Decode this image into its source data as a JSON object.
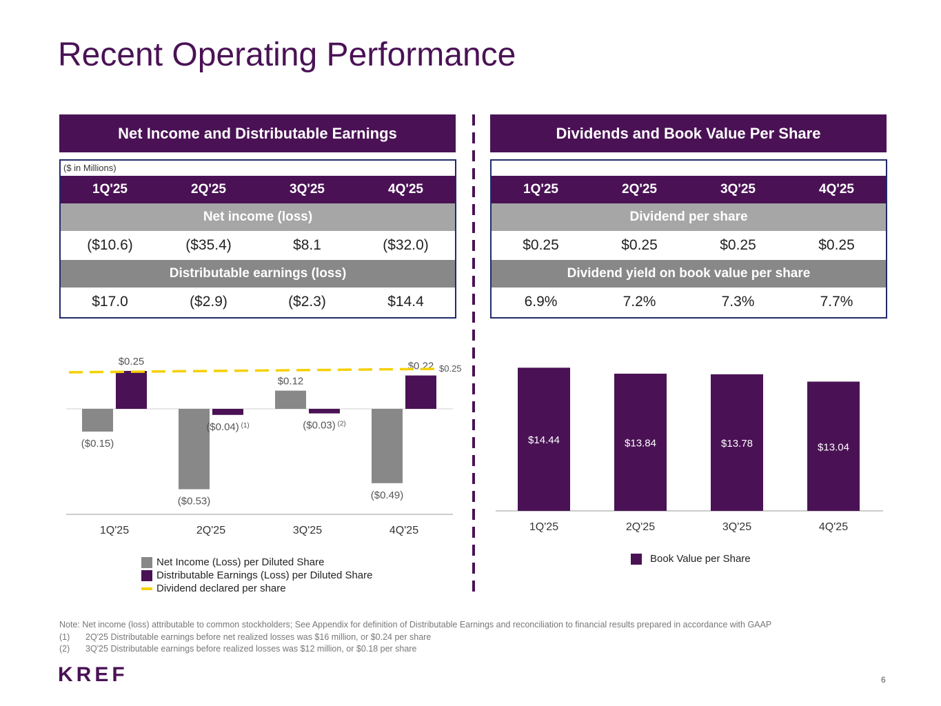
{
  "title": "Recent Operating Performance",
  "left_panel": {
    "heading": "Net Income and Distributable Earnings",
    "unit_note": "($ in Millions)",
    "quarters": [
      "1Q'25",
      "2Q'25",
      "3Q'25",
      "4Q'25"
    ],
    "net_income_label": "Net income (loss)",
    "net_income": [
      "($10.6)",
      "($35.4)",
      "$8.1",
      "($32.0)"
    ],
    "distributable_label": "Distributable earnings (loss)",
    "distributable": [
      "$17.0",
      "($2.9)",
      "($2.3)",
      "$14.4"
    ]
  },
  "right_panel": {
    "heading": "Dividends and Book Value Per Share",
    "quarters": [
      "1Q'25",
      "2Q'25",
      "3Q'25",
      "4Q'25"
    ],
    "dividend_label": "Dividend per share",
    "dividend": [
      "$0.25",
      "$0.25",
      "$0.25",
      "$0.25"
    ],
    "yield_label": "Dividend yield on book value per share",
    "yield": [
      "6.9%",
      "7.2%",
      "7.3%",
      "7.7%"
    ]
  },
  "chart_data": [
    {
      "type": "bar",
      "categories": [
        "1Q'25",
        "2Q'25",
        "3Q'25",
        "4Q'25"
      ],
      "series": [
        {
          "name": "Net Income (Loss) per Diluted Share",
          "color": "#888888",
          "values": [
            -0.15,
            -0.53,
            0.12,
            -0.49
          ],
          "labels": [
            "($0.15)",
            "($0.53)",
            "$0.12",
            "($0.49)"
          ]
        },
        {
          "name": "Distributable Earnings (Loss) per Diluted Share",
          "color": "#4a1255",
          "values": [
            0.25,
            -0.04,
            -0.03,
            0.22
          ],
          "labels": [
            "$0.25",
            "($0.04)",
            "($0.03)",
            "$0.22"
          ],
          "footnotes": [
            "",
            "(1)",
            "(2)",
            ""
          ]
        }
      ],
      "reference_line": {
        "name": "Dividend declared per share",
        "value": 0.25,
        "label": "$0.25",
        "color": "#f5d000"
      }
    },
    {
      "type": "bar",
      "categories": [
        "1Q'25",
        "2Q'25",
        "3Q'25",
        "4Q'25"
      ],
      "series": [
        {
          "name": "Book Value per Share",
          "color": "#4a1255",
          "values": [
            14.44,
            13.84,
            13.78,
            13.04
          ],
          "labels": [
            "$14.44",
            "$13.84",
            "$13.78",
            "$13.04"
          ]
        }
      ]
    }
  ],
  "notes": {
    "main": "Note: Net income (loss) attributable to common stockholders; See Appendix for definition of Distributable Earnings  and reconciliation to financial results prepared in accordance with GAAP",
    "items": [
      {
        "num": "(1)",
        "text": "2Q'25 Distributable earnings before net realized losses was $16 million, or $0.24 per share"
      },
      {
        "num": "(2)",
        "text": "3Q'25 Distributable earnings before realized losses was $12 million, or $0.18 per share"
      }
    ]
  },
  "logo": "KREF",
  "page_number": "6"
}
